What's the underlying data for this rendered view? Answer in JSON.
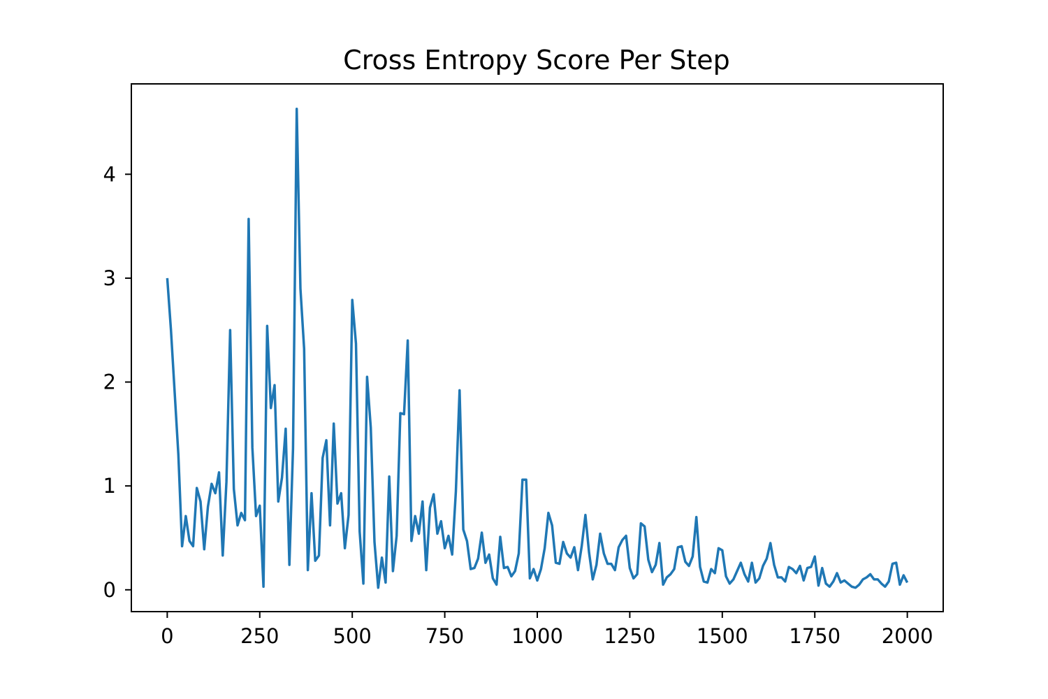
{
  "chart_data": {
    "type": "line",
    "title": "Cross Entropy Score Per Step",
    "xlabel": "",
    "ylabel": "",
    "xlim": [
      -97,
      2097
    ],
    "ylim": [
      -0.21,
      4.87
    ],
    "xticks": [
      0,
      250,
      500,
      750,
      1000,
      1250,
      1500,
      1750,
      2000
    ],
    "yticks": [
      0,
      1,
      2,
      3,
      4
    ],
    "grid": false,
    "legend": "none",
    "series": [
      {
        "color": "#1f77b4",
        "x": [
          0,
          10,
          20,
          30,
          40,
          50,
          60,
          70,
          80,
          90,
          100,
          110,
          120,
          130,
          140,
          150,
          160,
          170,
          180,
          190,
          200,
          210,
          220,
          230,
          240,
          250,
          260,
          270,
          280,
          290,
          300,
          310,
          320,
          330,
          340,
          350,
          360,
          370,
          380,
          390,
          400,
          410,
          420,
          430,
          440,
          450,
          460,
          470,
          480,
          490,
          500,
          510,
          520,
          530,
          540,
          550,
          560,
          570,
          580,
          590,
          600,
          610,
          620,
          630,
          640,
          650,
          660,
          670,
          680,
          690,
          700,
          710,
          720,
          730,
          740,
          750,
          760,
          770,
          780,
          790,
          800,
          810,
          820,
          830,
          840,
          850,
          860,
          870,
          880,
          890,
          900,
          910,
          920,
          930,
          940,
          950,
          960,
          970,
          980,
          990,
          1000,
          1010,
          1020,
          1030,
          1040,
          1050,
          1060,
          1070,
          1080,
          1090,
          1100,
          1110,
          1120,
          1130,
          1140,
          1150,
          1160,
          1170,
          1180,
          1190,
          1200,
          1210,
          1220,
          1230,
          1240,
          1250,
          1260,
          1270,
          1280,
          1290,
          1300,
          1310,
          1320,
          1330,
          1340,
          1350,
          1360,
          1370,
          1380,
          1390,
          1400,
          1410,
          1420,
          1430,
          1440,
          1450,
          1460,
          1470,
          1480,
          1490,
          1500,
          1510,
          1520,
          1530,
          1540,
          1550,
          1560,
          1570,
          1580,
          1590,
          1600,
          1610,
          1620,
          1630,
          1640,
          1650,
          1660,
          1670,
          1680,
          1690,
          1700,
          1710,
          1720,
          1730,
          1740,
          1750,
          1760,
          1770,
          1780,
          1790,
          1800,
          1810,
          1820,
          1830,
          1840,
          1850,
          1860,
          1870,
          1880,
          1890,
          1900,
          1910,
          1920,
          1930,
          1940,
          1950,
          1960,
          1970,
          1980,
          1990,
          2000
        ],
        "y": [
          3.0,
          2.5,
          1.9,
          1.3,
          0.42,
          0.71,
          0.47,
          0.42,
          0.98,
          0.85,
          0.39,
          0.8,
          1.02,
          0.93,
          1.13,
          0.33,
          1.04,
          2.5,
          0.97,
          0.62,
          0.74,
          0.67,
          3.57,
          1.37,
          0.71,
          0.81,
          0.03,
          2.54,
          1.75,
          1.97,
          0.85,
          1.08,
          1.55,
          0.24,
          1.36,
          4.63,
          2.9,
          2.32,
          0.19,
          0.93,
          0.28,
          0.33,
          1.27,
          1.44,
          0.62,
          1.6,
          0.83,
          0.93,
          0.4,
          0.72,
          2.79,
          2.37,
          0.56,
          0.06,
          2.05,
          1.56,
          0.46,
          0.02,
          0.31,
          0.07,
          1.09,
          0.18,
          0.52,
          1.7,
          1.69,
          2.4,
          0.47,
          0.71,
          0.54,
          0.85,
          0.19,
          0.79,
          0.92,
          0.54,
          0.66,
          0.4,
          0.52,
          0.34,
          0.95,
          1.92,
          0.58,
          0.47,
          0.2,
          0.21,
          0.3,
          0.55,
          0.26,
          0.34,
          0.11,
          0.05,
          0.51,
          0.21,
          0.22,
          0.13,
          0.18,
          0.35,
          1.06,
          1.06,
          0.11,
          0.2,
          0.09,
          0.2,
          0.4,
          0.74,
          0.62,
          0.26,
          0.25,
          0.46,
          0.35,
          0.31,
          0.41,
          0.19,
          0.42,
          0.72,
          0.36,
          0.1,
          0.24,
          0.54,
          0.35,
          0.25,
          0.25,
          0.19,
          0.41,
          0.48,
          0.52,
          0.21,
          0.11,
          0.15,
          0.64,
          0.61,
          0.29,
          0.17,
          0.24,
          0.45,
          0.05,
          0.12,
          0.15,
          0.2,
          0.41,
          0.42,
          0.27,
          0.23,
          0.32,
          0.7,
          0.22,
          0.08,
          0.07,
          0.2,
          0.16,
          0.4,
          0.38,
          0.13,
          0.06,
          0.1,
          0.18,
          0.26,
          0.15,
          0.08,
          0.26,
          0.07,
          0.11,
          0.23,
          0.3,
          0.45,
          0.24,
          0.12,
          0.12,
          0.08,
          0.22,
          0.2,
          0.16,
          0.23,
          0.09,
          0.21,
          0.22,
          0.32,
          0.04,
          0.21,
          0.06,
          0.03,
          0.08,
          0.16,
          0.07,
          0.09,
          0.06,
          0.03,
          0.02,
          0.05,
          0.1,
          0.12,
          0.15,
          0.1,
          0.1,
          0.06,
          0.03,
          0.08,
          0.25,
          0.26,
          0.05,
          0.14,
          0.07
        ]
      }
    ]
  }
}
